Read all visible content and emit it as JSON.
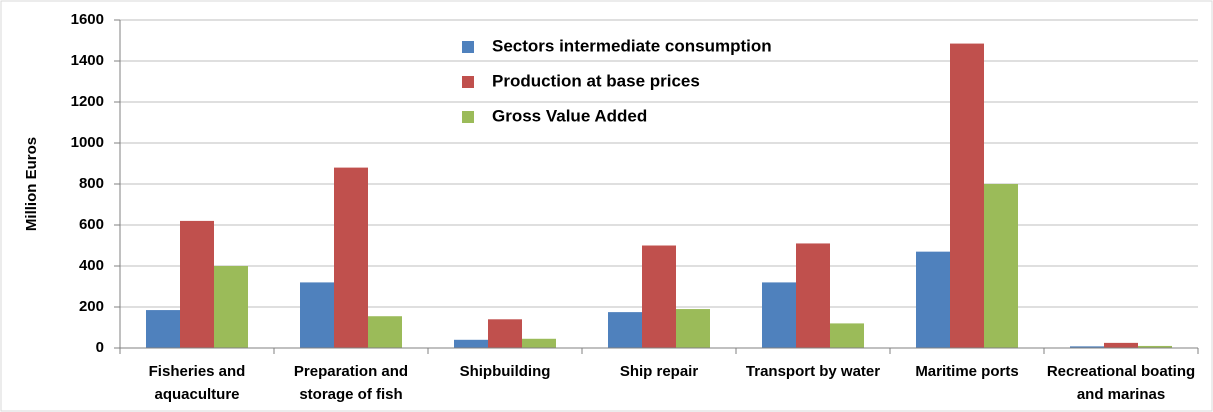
{
  "chart_data": {
    "type": "bar",
    "y_label": "Million Euros",
    "categories": [
      "Fisheries and aquaculture",
      "Preparation and storage of fish",
      "Shipbuilding",
      "Ship repair",
      "Transport by water",
      "Maritime ports",
      "Recreational boating and marinas"
    ],
    "series": [
      {
        "name": "Sectors intermediate consumption",
        "color": "#4f81bd",
        "values": [
          185,
          320,
          40,
          175,
          320,
          470,
          8
        ]
      },
      {
        "name": "Production at base prices",
        "color": "#c0504d",
        "values": [
          620,
          880,
          140,
          500,
          510,
          1485,
          25
        ]
      },
      {
        "name": "Gross Value Added",
        "color": "#9bbb59",
        "values": [
          400,
          155,
          45,
          190,
          120,
          800,
          10
        ]
      }
    ],
    "ylim": [
      0,
      1600
    ],
    "yticks": [
      0,
      200,
      400,
      600,
      800,
      1000,
      1200,
      1400,
      1600
    ],
    "grid": true
  }
}
